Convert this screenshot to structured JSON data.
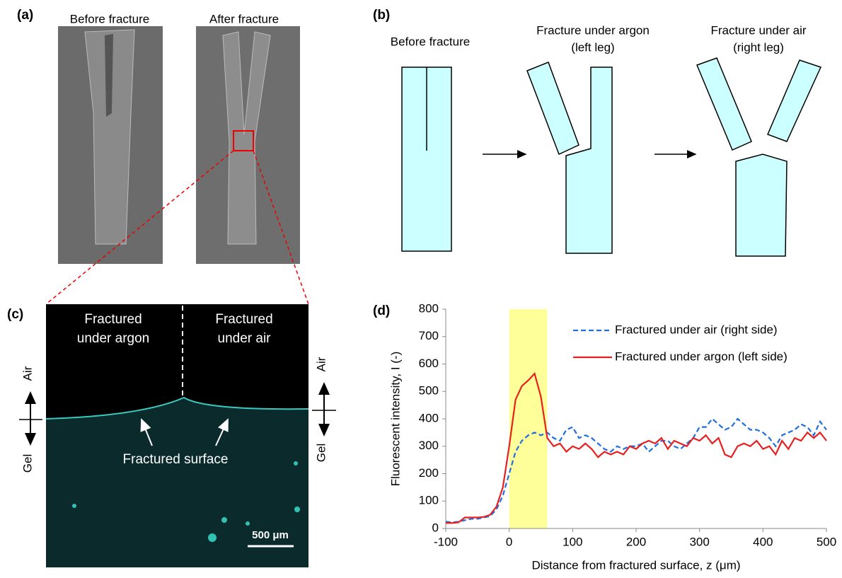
{
  "panels": {
    "a": {
      "label": "(a)",
      "captions": [
        "Before fracture",
        "After fracture"
      ]
    },
    "b": {
      "label": "(b)",
      "captions": [
        [
          "Before fracture"
        ],
        [
          "Fracture under argon",
          "(left leg)"
        ],
        [
          "Fracture under air",
          "(right leg)"
        ]
      ]
    },
    "c": {
      "label": "(c)",
      "regions": [
        [
          "Fractured",
          "under argon"
        ],
        [
          "Fractured",
          "under air"
        ]
      ],
      "axis_labels": [
        "Air",
        "Gel",
        "Air",
        "Gel"
      ],
      "annotation": "Fractured surface",
      "scale_bar": "500 μm"
    },
    "d": {
      "label": "(d)"
    }
  },
  "chart_data": {
    "type": "line",
    "x_label": "Distance from fractured surface, z (μm)",
    "y_label": "Fluorescent intensity, I (-)",
    "xlim": [
      -100,
      500
    ],
    "xticks": [
      -100,
      0,
      100,
      200,
      300,
      400,
      500
    ],
    "ylim": [
      0,
      800
    ],
    "yticks": [
      0,
      100,
      200,
      300,
      400,
      500,
      600,
      700,
      800
    ],
    "shaded_region": {
      "x": [
        0,
        60
      ],
      "color": "#ffff99"
    },
    "x": [
      -100,
      -90,
      -80,
      -70,
      -60,
      -50,
      -40,
      -30,
      -20,
      -10,
      0,
      10,
      20,
      30,
      40,
      50,
      60,
      70,
      80,
      90,
      100,
      110,
      120,
      130,
      140,
      150,
      160,
      170,
      180,
      190,
      200,
      210,
      220,
      230,
      240,
      250,
      260,
      270,
      280,
      290,
      300,
      310,
      320,
      330,
      340,
      350,
      360,
      370,
      380,
      390,
      400,
      410,
      420,
      430,
      440,
      450,
      460,
      470,
      480,
      490,
      500
    ],
    "series": [
      {
        "name": "Fractured under air (right side)",
        "color": "#1f6fe0",
        "line_style": "dashed",
        "values": [
          25,
          22,
          25,
          30,
          35,
          35,
          40,
          45,
          70,
          120,
          200,
          280,
          320,
          340,
          350,
          340,
          350,
          330,
          320,
          360,
          370,
          330,
          340,
          330,
          310,
          290,
          280,
          300,
          290,
          300,
          300,
          310,
          280,
          300,
          320,
          320,
          300,
          290,
          310,
          330,
          370,
          370,
          400,
          380,
          360,
          370,
          400,
          380,
          360,
          360,
          350,
          330,
          300,
          340,
          350,
          360,
          380,
          370,
          340,
          390,
          360
        ]
      },
      {
        "name": "Fractured under argon (left side)",
        "color": "#e81f1f",
        "line_style": "solid",
        "values": [
          20,
          20,
          22,
          40,
          40,
          40,
          42,
          50,
          80,
          150,
          300,
          470,
          520,
          540,
          565,
          480,
          330,
          300,
          310,
          280,
          300,
          290,
          310,
          290,
          260,
          280,
          270,
          280,
          270,
          300,
          290,
          310,
          320,
          310,
          330,
          290,
          320,
          310,
          300,
          330,
          320,
          340,
          310,
          330,
          270,
          260,
          300,
          310,
          300,
          320,
          290,
          300,
          270,
          320,
          290,
          330,
          320,
          350,
          330,
          350,
          320
        ]
      }
    ]
  }
}
